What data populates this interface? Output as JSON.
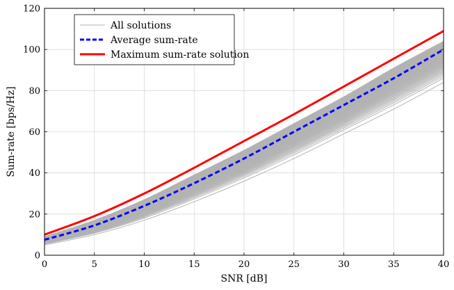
{
  "chart_data": {
    "type": "line",
    "xlabel": "SNR [dB]",
    "ylabel": "Sum-rate [bps/Hz]",
    "xlim": [
      0,
      40
    ],
    "ylim": [
      0,
      120
    ],
    "x_ticks": [
      0,
      5,
      10,
      15,
      20,
      25,
      30,
      35,
      40
    ],
    "y_ticks": [
      0,
      20,
      40,
      60,
      80,
      100,
      120
    ],
    "grid": true,
    "legend_position": "top-left",
    "x": [
      0,
      5,
      10,
      15,
      20,
      25,
      30,
      35,
      40
    ],
    "series": [
      {
        "name": "All solutions",
        "color": "#b3b3b3",
        "style": "solid",
        "band_lower": [
          5,
          10,
          17,
          26,
          36,
          47,
          59,
          71,
          84
        ],
        "band_upper": [
          9,
          17,
          27,
          39,
          51,
          64,
          77,
          91,
          104
        ],
        "values": [
          5,
          10,
          17,
          26,
          36,
          47,
          59,
          71,
          84
        ]
      },
      {
        "name": "Average sum-rate",
        "color": "#0000ff",
        "style": "dashed",
        "values": [
          7.5,
          14.5,
          24,
          35,
          47,
          60,
          73,
          86,
          100
        ]
      },
      {
        "name": "Maximum sum-rate solution",
        "color": "#ff0000",
        "style": "solid",
        "values": [
          10,
          19,
          30,
          42.5,
          55.5,
          68.5,
          82,
          95.5,
          109
        ]
      }
    ]
  }
}
